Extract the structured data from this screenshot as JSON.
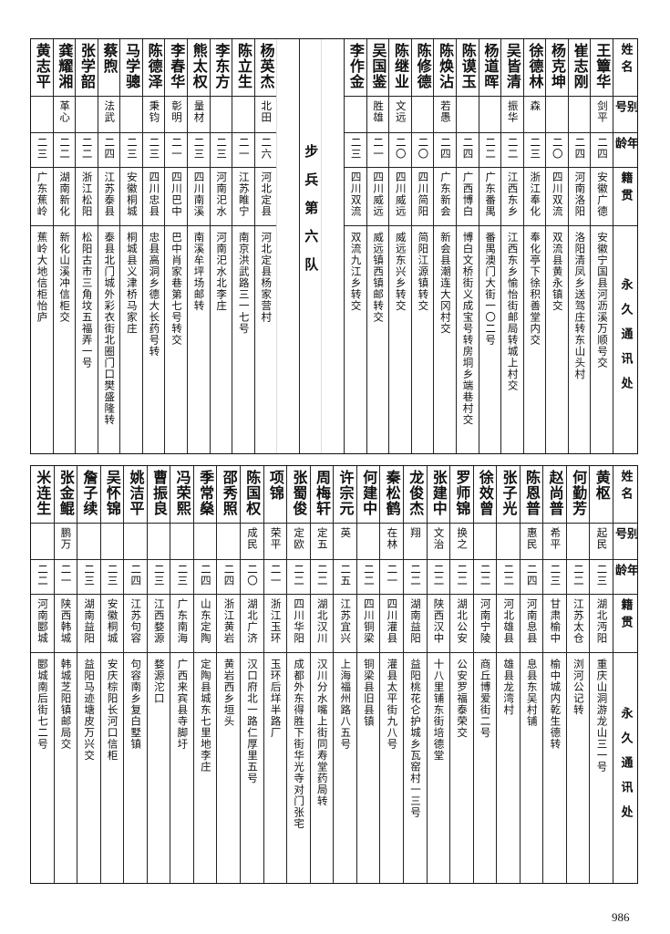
{
  "header": {
    "name": "姓名",
    "alias": "别号",
    "age": "年龄",
    "origin": "籍贯",
    "address": "永久通讯处"
  },
  "top_table": {
    "people_right": [
      {
        "name": "王簟华",
        "alias": "剑平",
        "age": "二四",
        "origin": "安徽广德",
        "address": "安徽宁国县河沥溪万顺号交"
      },
      {
        "name": "崔志刚",
        "alias": "",
        "age": "二四",
        "origin": "河南洛阳",
        "address": "洛阳清凤乡送驾庄转东山头村"
      },
      {
        "name": "杨克坤",
        "alias": "",
        "age": "二〇",
        "origin": "四川双流",
        "address": "双流县黄永镇交"
      },
      {
        "name": "徐德林",
        "alias": "森",
        "age": "二三",
        "origin": "浙江奉化",
        "address": "奉化亭下徐积善堂内交"
      },
      {
        "name": "吴皆清",
        "alias": "振华",
        "age": "二二",
        "origin": "江西东乡",
        "address": "江西东乡愉怡街邮局转城上村交"
      },
      {
        "name": "杨道晖",
        "alias": "",
        "age": "二二",
        "origin": "广东番禺",
        "address": "番禺澳门大街一〇二号"
      },
      {
        "name": "陈谟玉",
        "alias": "",
        "age": "二四",
        "origin": "广西博白",
        "address": "博白文桥街义成宝号转房垌乡端巷村交"
      },
      {
        "name": "陈焕沾",
        "alias": "若愚",
        "age": "二四",
        "origin": "广东新会",
        "address": "新会县潮连大冈村交"
      },
      {
        "name": "陈修德",
        "alias": "",
        "age": "二〇",
        "origin": "四川简阳",
        "address": "简阳江源镇转交"
      },
      {
        "name": "陈继业",
        "alias": "文远",
        "age": "二〇",
        "origin": "四川威远",
        "address": "威远东兴乡转交"
      },
      {
        "name": "吴国鉴",
        "alias": "胜雄",
        "age": "二一",
        "origin": "四川威远",
        "address": "威远镇西镇邮转交"
      },
      {
        "name": "李作金",
        "alias": "",
        "age": "二三",
        "origin": "四川双流",
        "address": "双流九江乡转交"
      }
    ],
    "section_label": "步兵第六队",
    "people_left": [
      {
        "name": "杨英杰",
        "alias": "北田",
        "age": "二六",
        "origin": "河北定县",
        "address": "河北定县杨家营村"
      },
      {
        "name": "陈立生",
        "alias": "",
        "age": "二一",
        "origin": "江苏睢宁",
        "address": "南京洪武路三一七号"
      },
      {
        "name": "李东方",
        "alias": "",
        "age": "二三",
        "origin": "河南汜水",
        "address": "河南汜水北李庄"
      },
      {
        "name": "熊太权",
        "alias": "量材",
        "age": "二三",
        "origin": "四川南溪",
        "address": "南溪牟坪场邮转"
      },
      {
        "name": "李春华",
        "alias": "彰明",
        "age": "二一",
        "origin": "四川巴中",
        "address": "巴中肖家巷第七号转交"
      },
      {
        "name": "陈德泽",
        "alias": "秉钧",
        "age": "二三",
        "origin": "四川忠县",
        "address": "忠县高洞乡德大长药号转"
      },
      {
        "name": "马学骢",
        "alias": "",
        "age": "二三",
        "origin": "安徽桐城",
        "address": "桐城县义津桥马家庄"
      },
      {
        "name": "蔡煦",
        "alias": "法武",
        "age": "二四",
        "origin": "江苏泰县",
        "address": "泰县北门城外彩衣街北圈门口樊盛隆转"
      },
      {
        "name": "张学韶",
        "alias": "",
        "age": "二二",
        "origin": "浙江松阳",
        "address": "松阳古市三角坟五福弄一号"
      },
      {
        "name": "龚耀湘",
        "alias": "革心",
        "age": "二二",
        "origin": "湖南新化",
        "address": "新化山溪冲信柜交"
      },
      {
        "name": "黄志平",
        "alias": "",
        "age": "二三",
        "origin": "广东蕉岭",
        "address": "蕉岭大地信柜怡庐"
      }
    ]
  },
  "bottom_table": {
    "people": [
      {
        "name": "黄枢",
        "alias": "起民",
        "age": "二三",
        "origin": "湖北沔阳",
        "address": "重庆山洞游龙山三一号"
      },
      {
        "name": "何勤芳",
        "alias": "",
        "age": "二二",
        "origin": "江苏太仓",
        "address": "浏河公记转"
      },
      {
        "name": "赵尚普",
        "alias": "希平",
        "age": "二三",
        "origin": "甘肃榆中",
        "address": "榆中城内乾生德转"
      },
      {
        "name": "陈恩普",
        "alias": "惠民",
        "age": "二四",
        "origin": "河南息县",
        "address": "息县东吴村铺"
      },
      {
        "name": "张子光",
        "alias": "",
        "age": "二二",
        "origin": "河北雄县",
        "address": "雄县龙湾村"
      },
      {
        "name": "徐效曾",
        "alias": "",
        "age": "二二",
        "origin": "河南宁陵",
        "address": "商丘博爱街二号"
      },
      {
        "name": "罗师锦",
        "alias": "换之",
        "age": "二二",
        "origin": "湖北公安",
        "address": "公安罗福泰荣交"
      },
      {
        "name": "张建中",
        "alias": "文治",
        "age": "二二",
        "origin": "陕西汉中",
        "address": "十八里铺东街培德堂"
      },
      {
        "name": "龙俊杰",
        "alias": "翔",
        "age": "二二",
        "origin": "湖南益阳",
        "address": "益阳桃花仑护城乡瓦窑村一三号"
      },
      {
        "name": "秦松鹤",
        "alias": "在林",
        "age": "二一",
        "origin": "四川灌县",
        "address": "灌县太平街九八号"
      },
      {
        "name": "何建中",
        "alias": "",
        "age": "二二",
        "origin": "四川铜梁",
        "address": "铜梁县旧县镇"
      },
      {
        "name": "许宗元",
        "alias": "英",
        "age": "二五",
        "origin": "江苏宜兴",
        "address": "上海福州路八五号"
      },
      {
        "name": "周梅轩",
        "alias": "定五",
        "age": "二二",
        "origin": "湖北汉川",
        "address": "汉川分水嘴上街同寿堂药局转"
      },
      {
        "name": "张蜀俊",
        "alias": "定欧",
        "age": "二二",
        "origin": "四川华阳",
        "address": "成都外东得胜下街华光寺对门张宅"
      },
      {
        "name": "项锦",
        "alias": "荣平",
        "age": "二一",
        "origin": "浙江玉环",
        "address": "玉环后垟半路厂"
      },
      {
        "name": "陈国权",
        "alias": "成民",
        "age": "二〇",
        "origin": "湖北广济",
        "address": "汉口府北一路仁厚里五号"
      },
      {
        "name": "邵秀照",
        "alias": "",
        "age": "二四",
        "origin": "浙江黄岩",
        "address": "黄岩西乡垣头"
      },
      {
        "name": "季常燊",
        "alias": "",
        "age": "二四",
        "origin": "山东定陶",
        "address": "定陶县城东七里地李庄"
      },
      {
        "name": "冯荣熙",
        "alias": "",
        "age": "二三",
        "origin": "广东南海",
        "address": "广西来宾县寺脚圩"
      },
      {
        "name": "曹振良",
        "alias": "",
        "age": "二三",
        "origin": "江西婺源",
        "address": "婺源沱口"
      },
      {
        "name": "姚洁平",
        "alias": "",
        "age": "二四",
        "origin": "江苏句容",
        "address": "句容南乡复白墅镇"
      },
      {
        "name": "吴怀锦",
        "alias": "",
        "age": "二三",
        "origin": "安徽桐城",
        "address": "安庆棕阳长河口信柜"
      },
      {
        "name": "詹子续",
        "alias": "",
        "age": "二三",
        "origin": "湖南益阳",
        "address": "益阳马迹塘皮万兴交"
      },
      {
        "name": "张金鲲",
        "alias": "鹏万",
        "age": "二一",
        "origin": "陕西韩城",
        "address": "韩城芝阳镇邮局交"
      },
      {
        "name": "米连生",
        "alias": "",
        "age": "二二",
        "origin": "河南郾城",
        "address": "郾城南后街七二号"
      }
    ]
  },
  "page_number": "986"
}
